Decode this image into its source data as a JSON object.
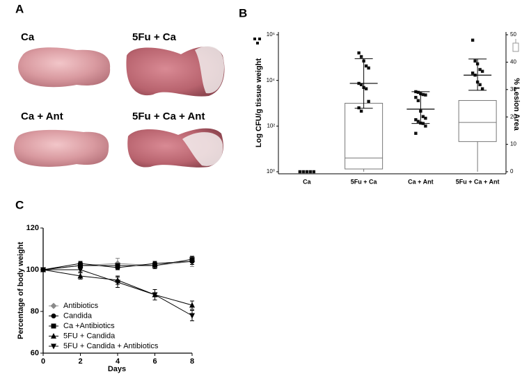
{
  "panels": {
    "a": "A",
    "b": "B",
    "c": "C"
  },
  "photos": [
    "Ca",
    "5Fu + Ca",
    "Ca + Ant",
    "5Fu + Ca + Ant"
  ],
  "chart_data": [
    {
      "type": "box-scatter",
      "ylabel": "Log CFU/g tissue weight",
      "y2label": "% Lesion Area",
      "categories": [
        "Ca",
        "5Fu + Ca",
        "Ca + Ant",
        "5Fu + Ca + Ant"
      ],
      "log_y": true,
      "ylim": [
        1,
        1000000
      ],
      "yticks": [
        {
          "value": 1,
          "label": "10⁰"
        },
        {
          "value": 100,
          "label": "10²"
        },
        {
          "value": 10000,
          "label": "10⁴"
        },
        {
          "value": 1000000,
          "label": "10⁶"
        }
      ],
      "y2lim": [
        0,
        50
      ],
      "y2ticks": [
        0,
        10,
        20,
        30,
        40,
        50
      ],
      "points": [
        [
          1,
          1,
          1,
          1,
          1
        ],
        [
          160000,
          110000,
          71000,
          43000,
          35000,
          7400,
          6500,
          4900,
          4300,
          1200,
          630,
          450
        ],
        [
          3200,
          3000,
          2600,
          2400,
          2300,
          1800,
          1300,
          450,
          260,
          220,
          190,
          160,
          135,
          130,
          100,
          48
        ],
        [
          580000,
          71000,
          53000,
          30000,
          25000,
          21000,
          17000,
          8500,
          6500,
          4300
        ]
      ],
      "means": [
        null,
        7400,
        550,
        17000
      ],
      "error_low": [
        null,
        600,
        130,
        3700
      ],
      "error_high": [
        null,
        90000,
        3200,
        87000
      ],
      "point_color": "#111111",
      "boxes": [
        null,
        {
          "min": 0,
          "q1": 1,
          "median": 5,
          "q3": 25
        },
        null,
        {
          "min": 0,
          "q1": 11,
          "median": 18,
          "q3": 26
        }
      ],
      "box_axis": "y2",
      "box_color": "#777777"
    },
    {
      "type": "line",
      "xlabel": "Days",
      "ylabel": "Percentage of body weight",
      "x": [
        0,
        2,
        4,
        6,
        8
      ],
      "xlim": [
        0,
        8
      ],
      "xticks": [
        0,
        2,
        4,
        6,
        8
      ],
      "ylim": [
        60,
        120
      ],
      "yticks": [
        60,
        80,
        100,
        120
      ],
      "series": [
        {
          "name": "Antibiotics",
          "color": "#8a8a8a",
          "marker": "diamond",
          "values": [
            100,
            102,
            103,
            102,
            104
          ],
          "errors": [
            0.5,
            1,
            2.5,
            1.5,
            2.5
          ]
        },
        {
          "name": "Candida",
          "color": "#000000",
          "marker": "circle",
          "values": [
            100,
            103,
            101,
            103,
            104
          ],
          "errors": [
            0.5,
            1,
            1,
            1,
            1.5
          ]
        },
        {
          "name": "Ca +Antibiotics",
          "color": "#000000",
          "marker": "square",
          "values": [
            100,
            102,
            102,
            102,
            105
          ],
          "errors": [
            0.5,
            1,
            1,
            1.5,
            1.5
          ]
        },
        {
          "name": "5FU + Candida",
          "color": "#000000",
          "marker": "triangle",
          "values": [
            100,
            97,
            95,
            88,
            83
          ],
          "errors": [
            0.5,
            1.5,
            2,
            2.5,
            2
          ]
        },
        {
          "name": "5FU + Candida + Antibiotics",
          "color": "#000000",
          "marker": "triangle-down",
          "values": [
            100,
            100,
            94,
            88,
            78
          ],
          "errors": [
            0.5,
            1,
            2.5,
            2.5,
            2.5
          ]
        }
      ]
    }
  ]
}
